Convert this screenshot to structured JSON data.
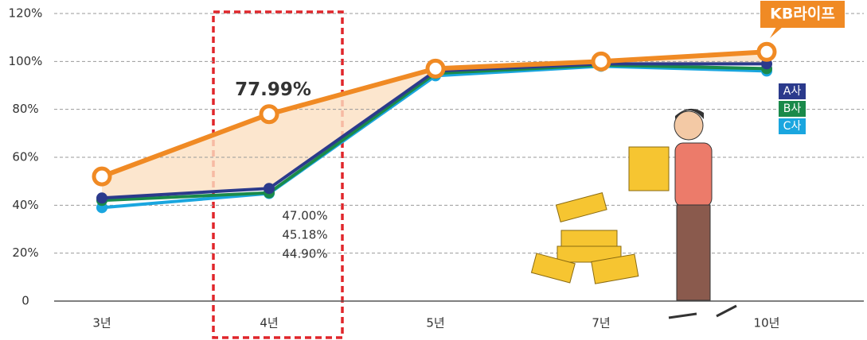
{
  "chart_data": {
    "type": "line",
    "categories": [
      "3년",
      "4년",
      "5년",
      "7년",
      "10년"
    ],
    "series": [
      {
        "name": "KB라이프",
        "color": "#f08a24",
        "values": [
          52,
          77.99,
          97,
          100,
          104
        ],
        "value_labels": [
          null,
          "77.99%",
          null,
          null,
          null
        ]
      },
      {
        "name": "A사",
        "color": "#2b3a8c",
        "values": [
          43,
          47.0,
          96,
          99,
          99
        ],
        "value_labels": [
          null,
          "47.00%",
          null,
          null,
          null
        ]
      },
      {
        "name": "B사",
        "color": "#1a8a4a",
        "values": [
          42,
          45.18,
          95,
          98.5,
          97
        ],
        "value_labels": [
          null,
          "45.18%",
          null,
          null,
          null
        ]
      },
      {
        "name": "C사",
        "color": "#1aa6df",
        "values": [
          39,
          44.9,
          94,
          98,
          96
        ],
        "value_labels": [
          null,
          "44.90%",
          null,
          null,
          null
        ]
      }
    ],
    "ylim": [
      0,
      120
    ],
    "yticks": [
      0,
      {
        "value": 20,
        "label": "20%"
      },
      {
        "value": 40,
        "label": "40%"
      },
      {
        "value": 60,
        "label": "60%"
      },
      {
        "value": 80,
        "label": "80%"
      },
      {
        "value": 100,
        "label": "100%"
      },
      {
        "value": 120,
        "label": "120%"
      }
    ],
    "grid": true,
    "legend": "right"
  }
}
